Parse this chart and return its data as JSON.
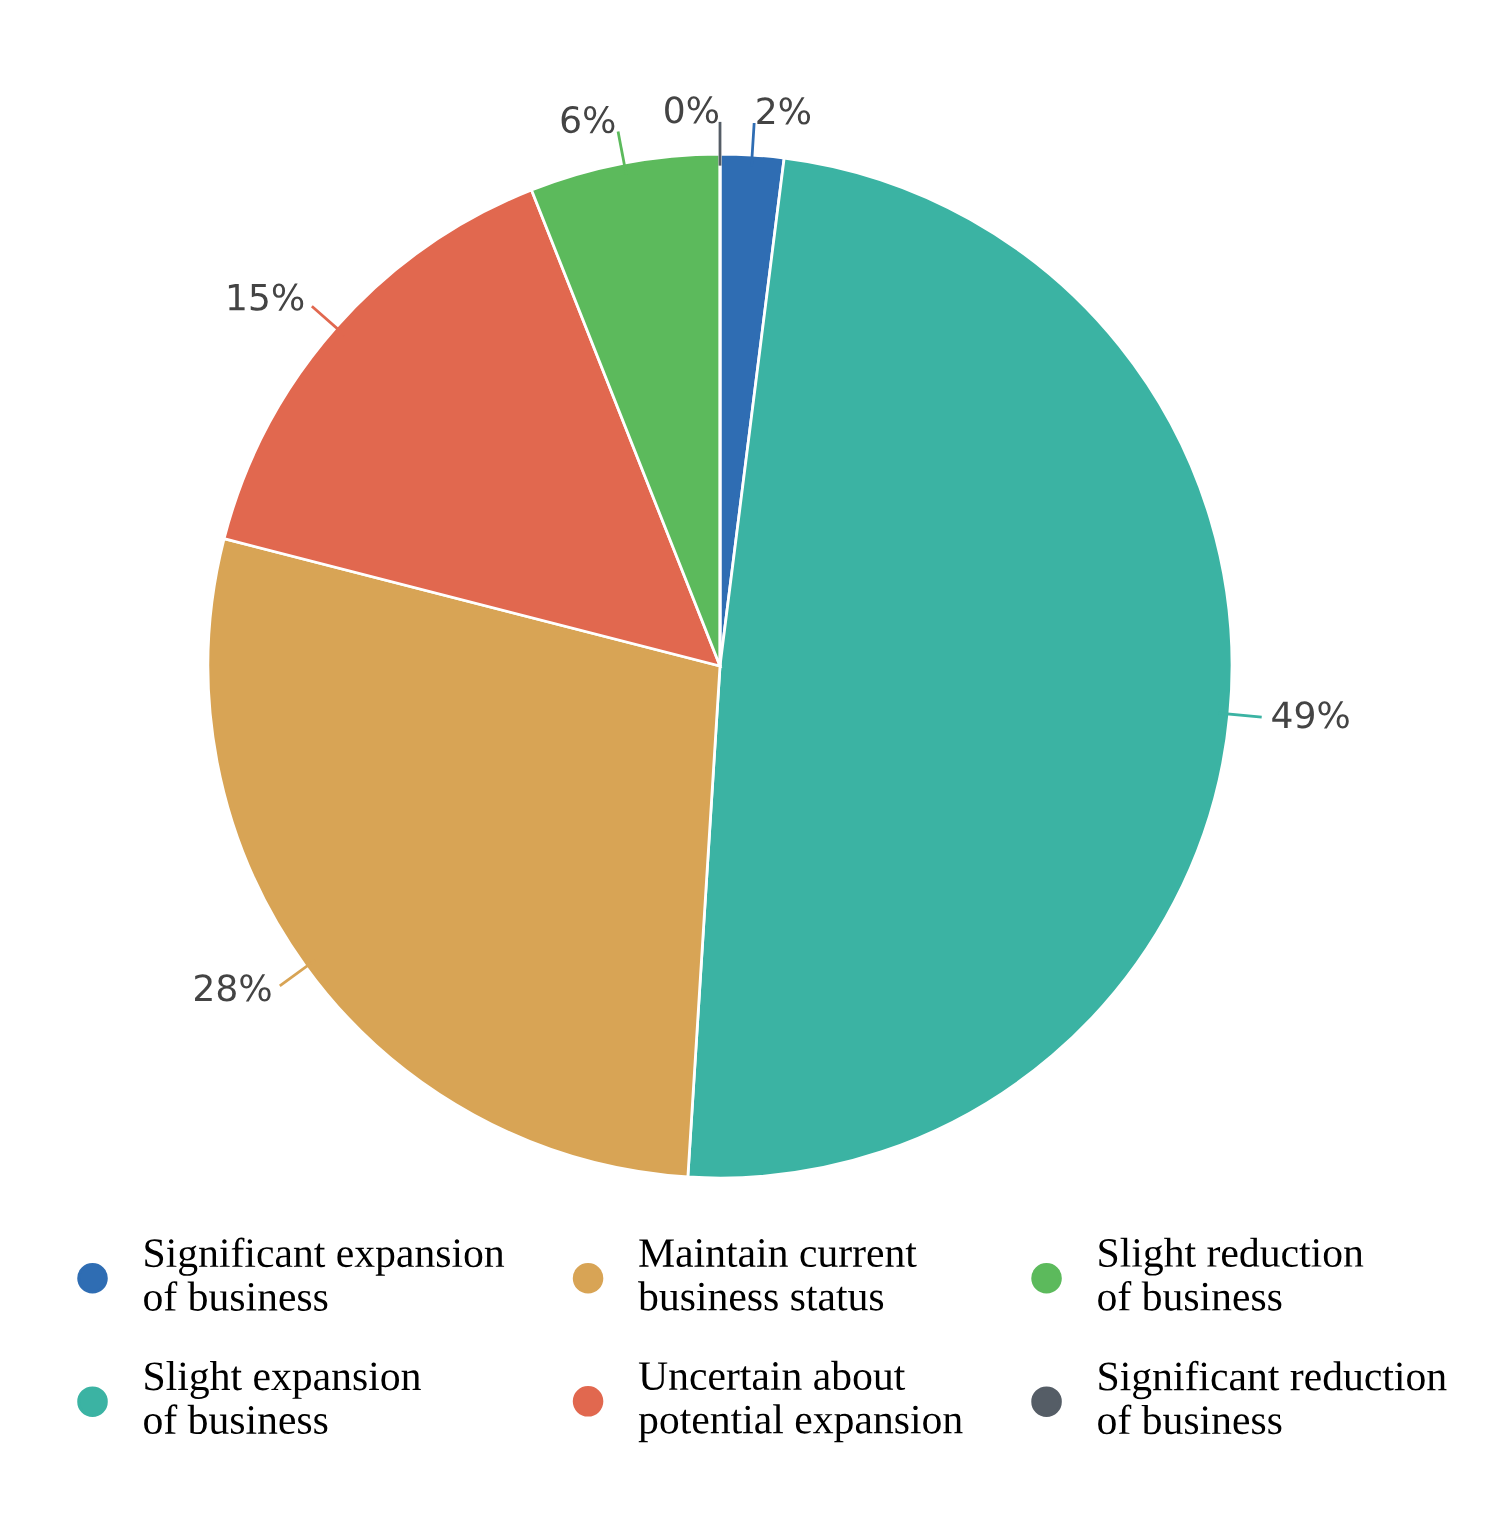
{
  "chart_data": {
    "type": "pie",
    "categories": [
      "Significant expansion of business",
      "Slight expansion of business",
      "Maintain current business status",
      "Uncertain about potential expansion",
      "Slight reduction of business",
      "Significant reduction of business"
    ],
    "values": [
      2,
      49,
      28,
      15,
      6,
      0
    ],
    "colors": [
      "#2f6db3",
      "#3bb3a3",
      "#d8a455",
      "#e1684f",
      "#5cba5c",
      "#555d66"
    ],
    "value_labels": [
      "2%",
      "49%",
      "28%",
      "15%",
      "6%",
      "0%"
    ],
    "legend": "bottom"
  }
}
